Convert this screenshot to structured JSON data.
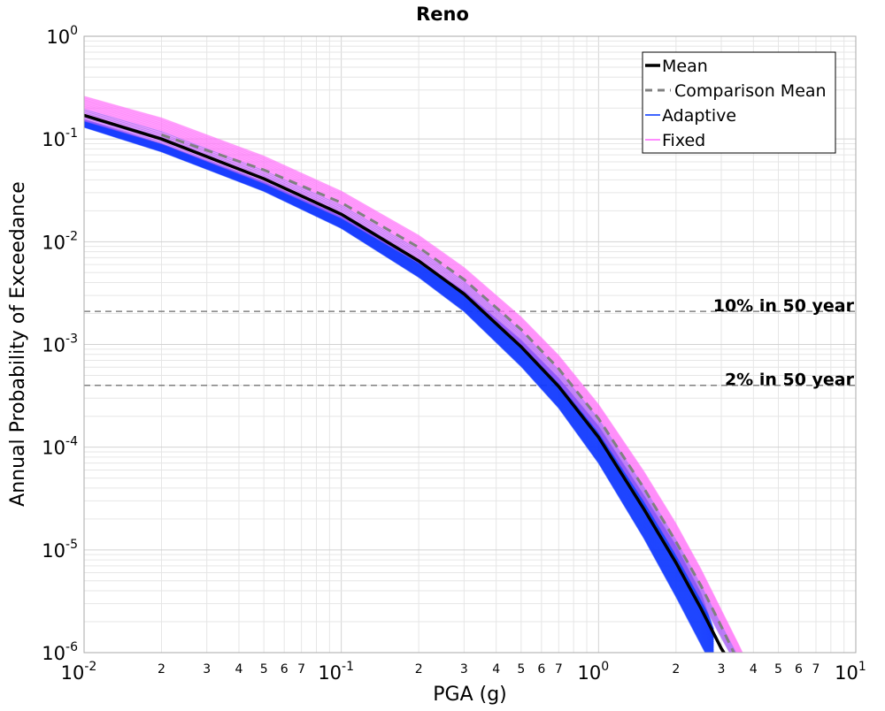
{
  "chart_data": {
    "type": "line",
    "title": "Reno",
    "xlabel": "PGA (g)",
    "ylabel": "Annual Probability of Exceedance",
    "xscale": "log",
    "yscale": "log",
    "xlim": [
      0.01,
      10
    ],
    "ylim": [
      1e-06,
      1
    ],
    "grid": true,
    "legend_position": "top-right",
    "x_major_ticks": [
      {
        "value": 0.01,
        "base": "10",
        "exp": "-2"
      },
      {
        "value": 0.1,
        "base": "10",
        "exp": "-1"
      },
      {
        "value": 1,
        "base": "10",
        "exp": "0"
      },
      {
        "value": 10,
        "base": "10",
        "exp": "1"
      }
    ],
    "x_minor_tick_labels": [
      "2",
      "3",
      "4",
      "5",
      "6",
      "7"
    ],
    "y_major_ticks": [
      {
        "value": 1,
        "base": "10",
        "exp": "0"
      },
      {
        "value": 0.1,
        "base": "10",
        "exp": "-1"
      },
      {
        "value": 0.01,
        "base": "10",
        "exp": "-2"
      },
      {
        "value": 0.001,
        "base": "10",
        "exp": "-3"
      },
      {
        "value": 0.0001,
        "base": "10",
        "exp": "-4"
      },
      {
        "value": 1e-05,
        "base": "10",
        "exp": "-5"
      },
      {
        "value": 1e-06,
        "base": "10",
        "exp": "-6"
      }
    ],
    "reference_lines": [
      {
        "label": "10% in 50 year",
        "y": 0.0021,
        "color": "#808080"
      },
      {
        "label": "2% in 50 year",
        "y": 0.0004,
        "color": "#808080"
      }
    ],
    "legend": [
      {
        "label": "Mean",
        "style": "solid-thick",
        "color": "#000000"
      },
      {
        "label": "Comparison Mean",
        "style": "dashed",
        "color": "#808080"
      },
      {
        "label": "Adaptive",
        "style": "thin",
        "color": "#0033ff"
      },
      {
        "label": "Fixed",
        "style": "thin",
        "color": "#ff66ff"
      }
    ],
    "series": [
      {
        "name": "Mean",
        "color": "#000000",
        "x": [
          0.01,
          0.02,
          0.05,
          0.1,
          0.2,
          0.3,
          0.5,
          0.7,
          1.0,
          1.5,
          2.0,
          2.5,
          3.0,
          3.2
        ],
        "y": [
          0.17,
          0.1,
          0.041,
          0.0185,
          0.0065,
          0.0031,
          0.00095,
          0.00039,
          0.000125,
          2.5e-05,
          7.5e-06,
          2.7e-06,
          1.1e-06,
          8.5e-07
        ]
      },
      {
        "name": "Comparison Mean",
        "color": "#808080",
        "x": [
          0.02,
          0.05,
          0.1,
          0.2,
          0.3,
          0.5,
          0.7,
          1.0,
          1.5,
          2.0,
          2.5,
          3.0,
          3.5
        ],
        "y": [
          0.11,
          0.05,
          0.024,
          0.0088,
          0.0043,
          0.0014,
          0.00058,
          0.00019,
          4e-05,
          1.2e-05,
          4.5e-06,
          1.8e-06,
          8e-07
        ]
      },
      {
        "name": "Adaptive",
        "color": "#0033ff",
        "x": [
          0.01,
          0.02,
          0.05,
          0.1,
          0.2,
          0.3,
          0.5,
          0.7,
          1.0,
          1.5,
          2.0,
          2.5,
          2.8
        ],
        "y_lower": [
          0.13,
          0.075,
          0.031,
          0.0135,
          0.0045,
          0.0021,
          0.00061,
          0.00024,
          7e-05,
          1.3e-05,
          3.5e-06,
          1.2e-06,
          7e-07
        ],
        "y_upper": [
          0.155,
          0.09,
          0.038,
          0.0175,
          0.0065,
          0.0033,
          0.0011,
          0.00047,
          0.00016,
          3.4e-05,
          1.1e-05,
          3.8e-06,
          1.7e-06
        ]
      },
      {
        "name": "Fixed",
        "color": "#ff66ff",
        "x": [
          0.01,
          0.02,
          0.05,
          0.1,
          0.2,
          0.3,
          0.5,
          0.7,
          1.0,
          1.5,
          2.0,
          2.5,
          3.0,
          3.5,
          3.7
        ],
        "y_lower": [
          0.15,
          0.09,
          0.037,
          0.017,
          0.0062,
          0.0031,
          0.001,
          0.00042,
          0.00014,
          3e-05,
          9e-06,
          3.3e-06,
          1.4e-06,
          7e-07,
          5e-07
        ],
        "y_upper": [
          0.26,
          0.16,
          0.068,
          0.031,
          0.0115,
          0.0056,
          0.00185,
          0.00078,
          0.00026,
          5.8e-05,
          1.8e-05,
          6.5e-06,
          2.6e-06,
          1.2e-06,
          9e-07
        ]
      }
    ]
  }
}
